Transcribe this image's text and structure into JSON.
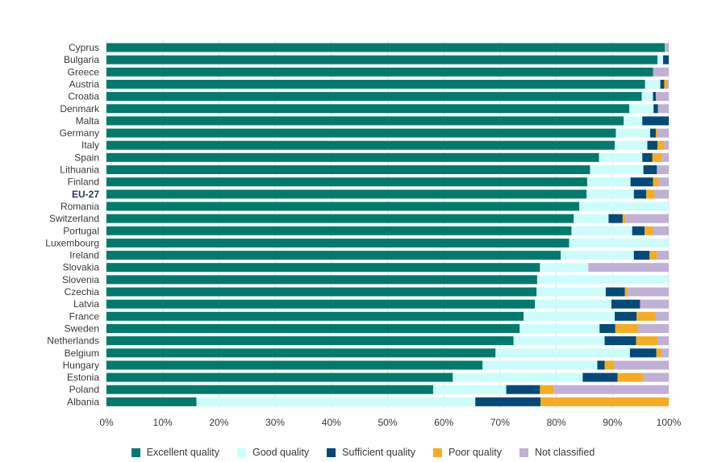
{
  "chart_data": {
    "type": "bar",
    "orientation": "horizontal",
    "stacked": true,
    "xlim": [
      0,
      100
    ],
    "x_ticks": [
      "0%",
      "10%",
      "20%",
      "30%",
      "40%",
      "50%",
      "60%",
      "70%",
      "80%",
      "90%",
      "100%"
    ],
    "categories": [
      "Cyprus",
      "Bulgaria",
      "Greece",
      "Austria",
      "Croatia",
      "Denmark",
      "Malta",
      "Germany",
      "Italy",
      "Spain",
      "Lithuania",
      "Finland",
      "EU-27",
      "Romania",
      "Switzerland",
      "Portugal",
      "Luxembourg",
      "Ireland",
      "Slovakia",
      "Slovenia",
      "Czechia",
      "Latvia",
      "France",
      "Sweden",
      "Netherlands",
      "Belgium",
      "Hungary",
      "Estonia",
      "Poland",
      "Albania"
    ],
    "highlight_category": "EU-27",
    "series": [
      {
        "name": "Excellent quality",
        "color": "#007a6c",
        "values": [
          99.3,
          98.0,
          97.2,
          95.8,
          95.2,
          93.0,
          92.0,
          90.6,
          90.4,
          87.6,
          86.0,
          85.5,
          85.4,
          84.1,
          83.1,
          82.7,
          82.3,
          80.8,
          77.1,
          76.6,
          76.5,
          76.2,
          74.2,
          73.5,
          72.4,
          69.2,
          66.9,
          61.6,
          58.1,
          16.0
        ]
      },
      {
        "name": "Good quality",
        "color": "#ccfdfa",
        "values": [
          0.0,
          1.0,
          0.0,
          2.7,
          2.0,
          4.3,
          3.3,
          6.1,
          5.8,
          7.7,
          9.5,
          7.7,
          8.4,
          15.9,
          6.2,
          10.8,
          17.7,
          13.0,
          8.6,
          23.4,
          12.3,
          13.6,
          16.2,
          14.2,
          16.2,
          23.9,
          20.4,
          23.1,
          13.0,
          49.6
        ]
      },
      {
        "name": "Sufficient quality",
        "color": "#034a78",
        "values": [
          0.0,
          1.0,
          0.0,
          0.7,
          0.5,
          0.8,
          4.7,
          1.0,
          1.8,
          1.8,
          2.4,
          4.0,
          2.2,
          0.0,
          2.5,
          2.2,
          0.0,
          2.8,
          0.0,
          0.0,
          3.4,
          5.1,
          3.9,
          2.8,
          5.6,
          4.7,
          1.3,
          6.2,
          6.0,
          11.6
        ]
      },
      {
        "name": "Poor quality",
        "color": "#f5ac22",
        "values": [
          0.0,
          0.0,
          0.0,
          0.6,
          0.0,
          0.0,
          0.0,
          0.3,
          1.2,
          1.7,
          0.0,
          1.0,
          1.5,
          0.0,
          0.5,
          1.5,
          0.0,
          1.3,
          0.0,
          0.0,
          0.6,
          0.0,
          3.4,
          4.1,
          3.8,
          0.9,
          1.7,
          4.5,
          2.5,
          22.8
        ]
      },
      {
        "name": "Not classified",
        "color": "#c0b0d6",
        "values": [
          0.7,
          0.0,
          2.8,
          0.2,
          2.3,
          1.9,
          0.0,
          2.0,
          0.8,
          1.2,
          2.1,
          1.8,
          2.5,
          0.0,
          7.7,
          2.8,
          0.0,
          2.1,
          14.3,
          0.0,
          7.2,
          5.1,
          2.3,
          5.4,
          2.0,
          1.3,
          9.7,
          4.6,
          20.4,
          0.0
        ]
      }
    ]
  }
}
